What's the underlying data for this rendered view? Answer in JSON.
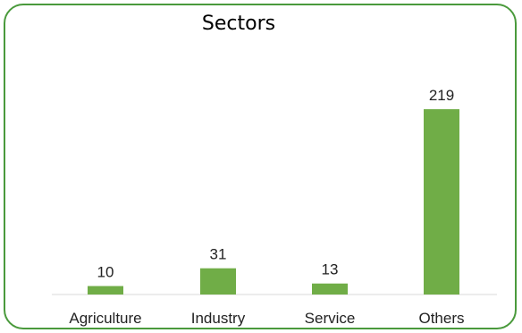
{
  "chart_data": {
    "type": "bar",
    "title": "Sectors",
    "categories": [
      "Agriculture",
      "Industry",
      "Service",
      "Others"
    ],
    "values": [
      10,
      31,
      13,
      219
    ],
    "xlabel": "",
    "ylabel": "",
    "ylim": [
      0,
      219
    ],
    "grid": false,
    "legend": "none",
    "bar_color": "#70ad47",
    "frame_color": "#4a9a3c"
  }
}
